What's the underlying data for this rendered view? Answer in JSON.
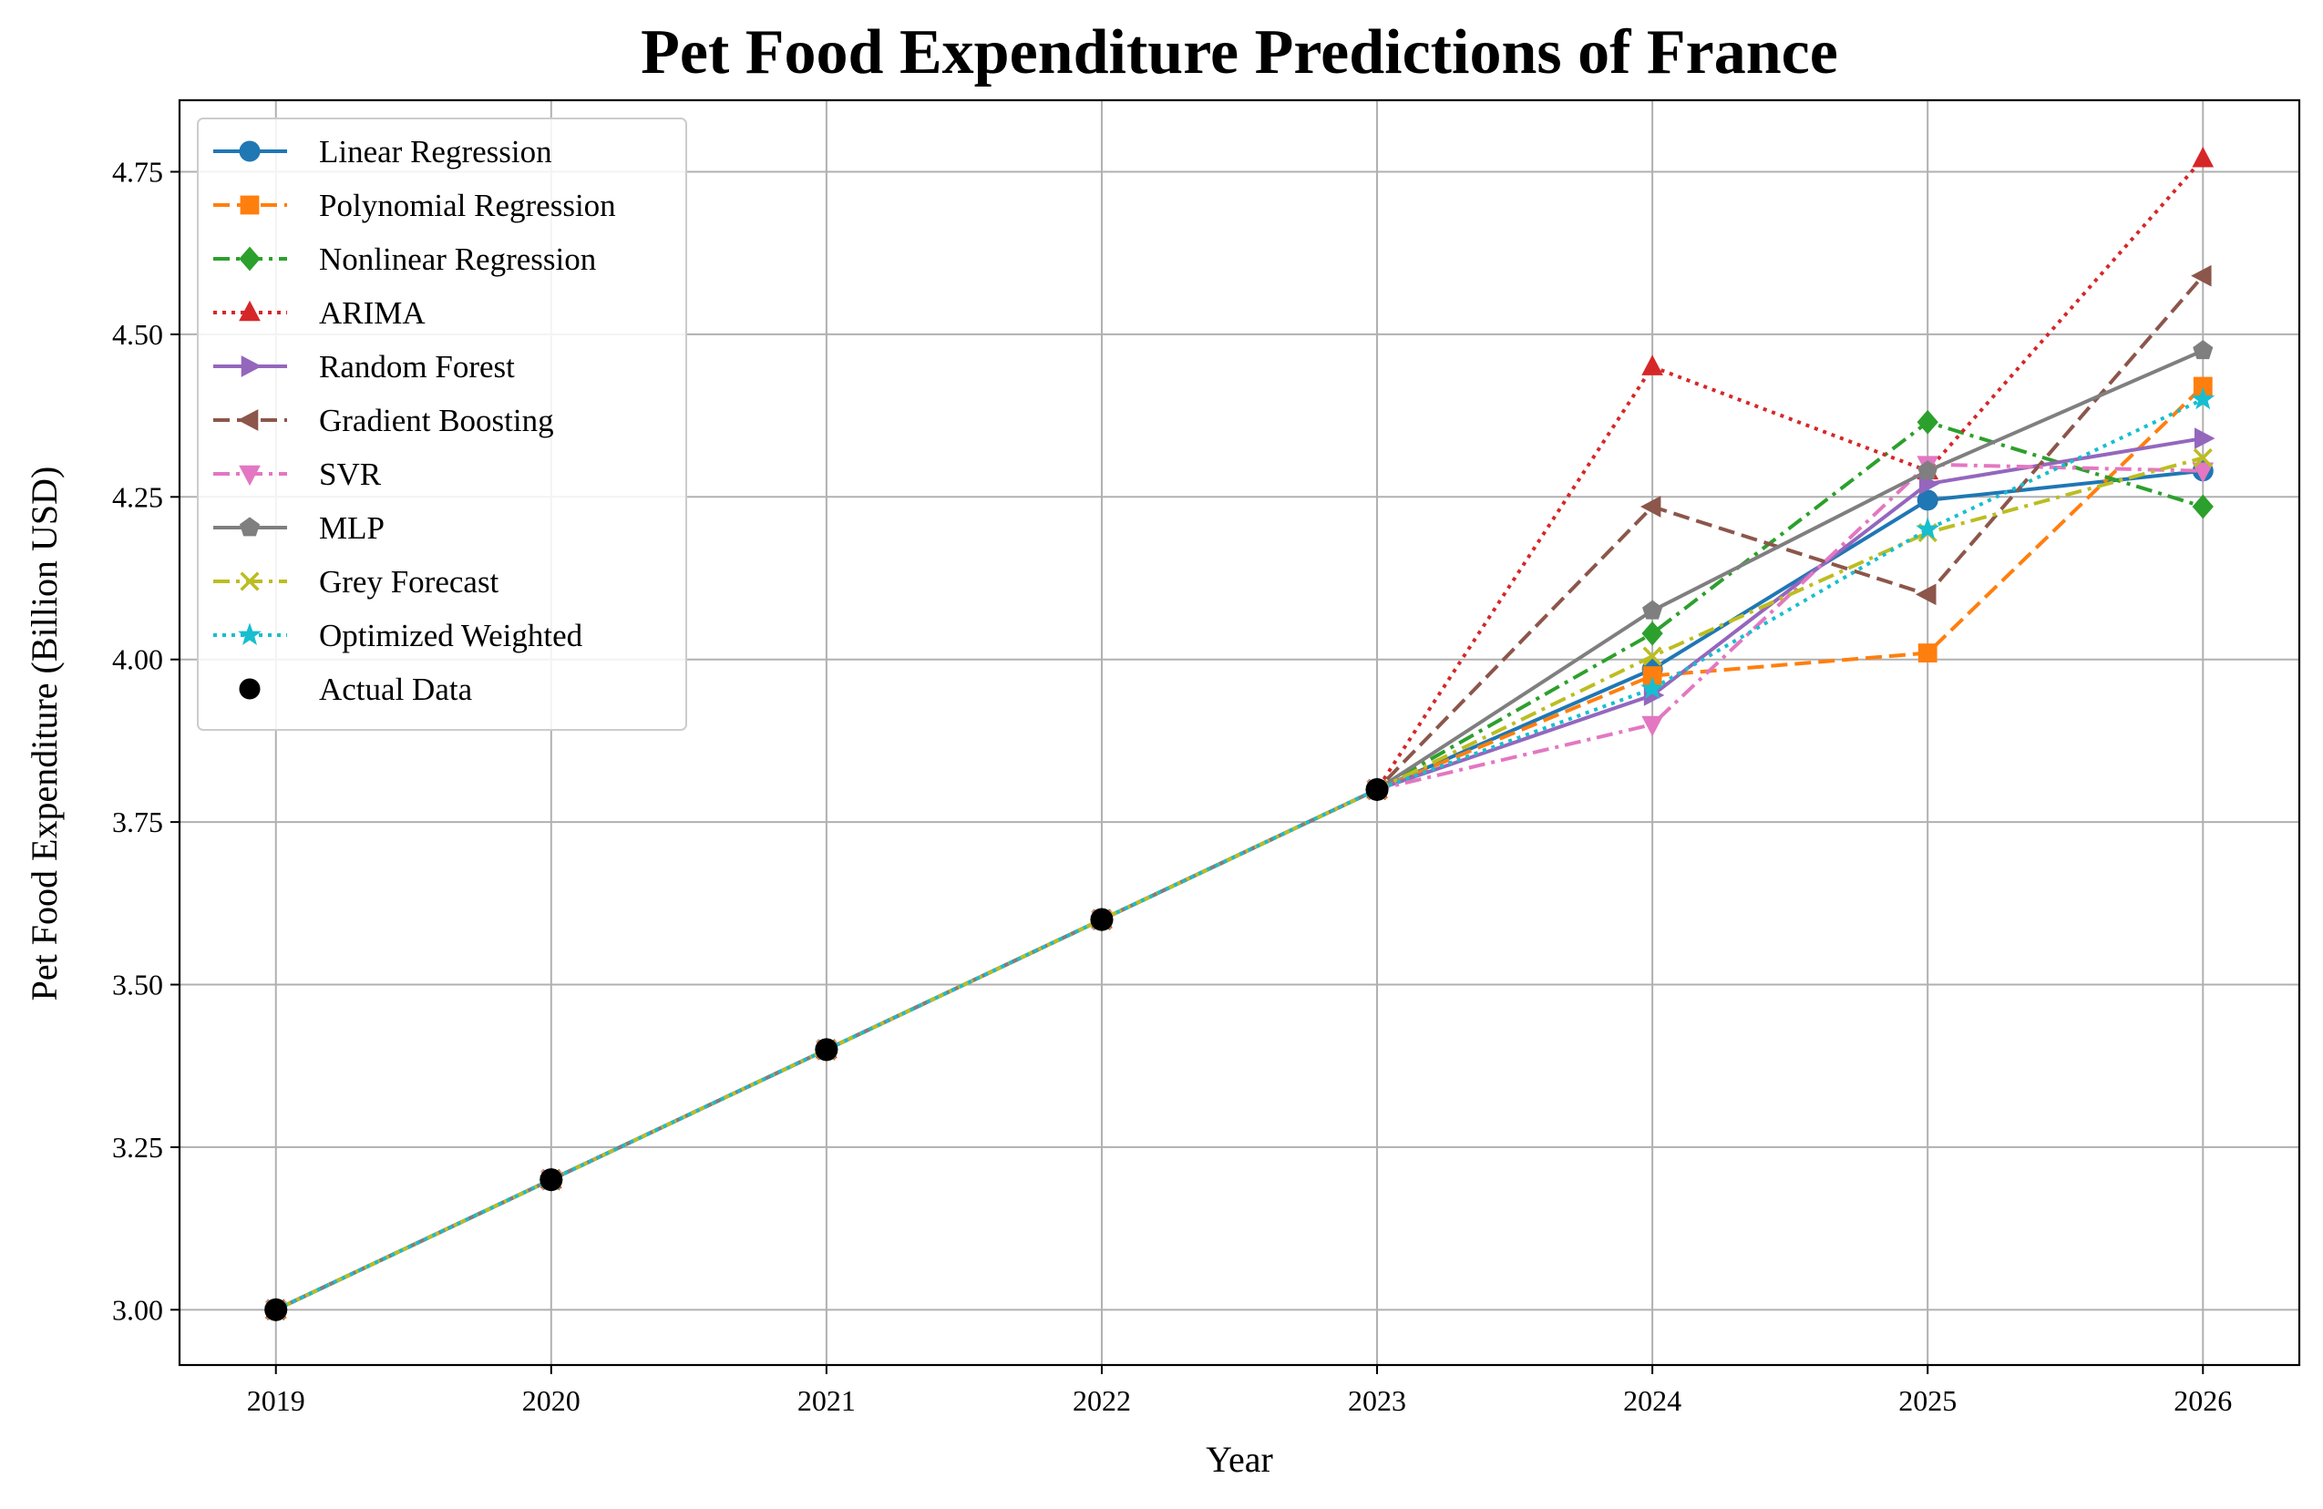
{
  "chart_data": {
    "type": "line",
    "title": "Pet Food Expenditure Predictions of France",
    "xlabel": "Year",
    "ylabel": "Pet Food Expenditure (Billion USD)",
    "x": [
      2019,
      2020,
      2021,
      2022,
      2023,
      2024,
      2025,
      2026
    ],
    "xlim": [
      2018.65,
      2026.35
    ],
    "ylim": [
      2.915,
      4.86
    ],
    "yticks": [
      3.0,
      3.25,
      3.5,
      3.75,
      4.0,
      4.25,
      4.5,
      4.75
    ],
    "grid": true,
    "legend_position": "upper-left",
    "series": [
      {
        "name": "Linear Regression",
        "color": "#1f77b4",
        "dash": "solid",
        "marker": "circle",
        "values": [
          3.0,
          3.2,
          3.4,
          3.6,
          3.8,
          3.985,
          4.245,
          4.29
        ]
      },
      {
        "name": "Polynomial Regression",
        "color": "#ff7f0e",
        "dash": "dashed",
        "marker": "square",
        "values": [
          3.0,
          3.2,
          3.4,
          3.6,
          3.8,
          3.975,
          4.01,
          4.42
        ]
      },
      {
        "name": "Nonlinear Regression",
        "color": "#2ca02c",
        "dash": "dashdot",
        "marker": "diamond",
        "values": [
          3.0,
          3.2,
          3.4,
          3.6,
          3.8,
          4.04,
          4.365,
          4.235
        ]
      },
      {
        "name": "ARIMA",
        "color": "#d62728",
        "dash": "dotted",
        "marker": "triangle-up",
        "values": [
          3.0,
          3.2,
          3.4,
          3.6,
          3.8,
          4.45,
          4.29,
          4.77
        ]
      },
      {
        "name": "Random Forest",
        "color": "#9467bd",
        "dash": "solid",
        "marker": "triangle-right",
        "values": [
          3.0,
          3.2,
          3.4,
          3.6,
          3.8,
          3.945,
          4.27,
          4.34
        ]
      },
      {
        "name": "Gradient Boosting",
        "color": "#8c564b",
        "dash": "dashed",
        "marker": "triangle-left",
        "values": [
          3.0,
          3.2,
          3.4,
          3.6,
          3.8,
          4.235,
          4.1,
          4.59
        ]
      },
      {
        "name": "SVR",
        "color": "#e377c2",
        "dash": "dashdot",
        "marker": "triangle-down",
        "values": [
          3.0,
          3.2,
          3.4,
          3.6,
          3.8,
          3.9,
          4.3,
          4.29
        ]
      },
      {
        "name": "MLP",
        "color": "#7f7f7f",
        "dash": "solid",
        "marker": "pentagon",
        "values": [
          3.0,
          3.2,
          3.4,
          3.6,
          3.8,
          4.075,
          4.29,
          4.475
        ]
      },
      {
        "name": "Grey Forecast",
        "color": "#bcbd22",
        "dash": "dashdot",
        "marker": "x",
        "values": [
          3.0,
          3.2,
          3.4,
          3.6,
          3.8,
          4.005,
          4.195,
          4.31
        ]
      },
      {
        "name": "Optimized Weighted",
        "color": "#17becf",
        "dash": "dotted",
        "marker": "star",
        "values": [
          3.0,
          3.2,
          3.4,
          3.6,
          3.8,
          3.955,
          4.2,
          4.4
        ]
      }
    ],
    "actual": {
      "name": "Actual Data",
      "color": "#000000",
      "marker": "circle",
      "x": [
        2019,
        2020,
        2021,
        2022,
        2023
      ],
      "values": [
        3.0,
        3.2,
        3.4,
        3.6,
        3.8
      ]
    }
  }
}
